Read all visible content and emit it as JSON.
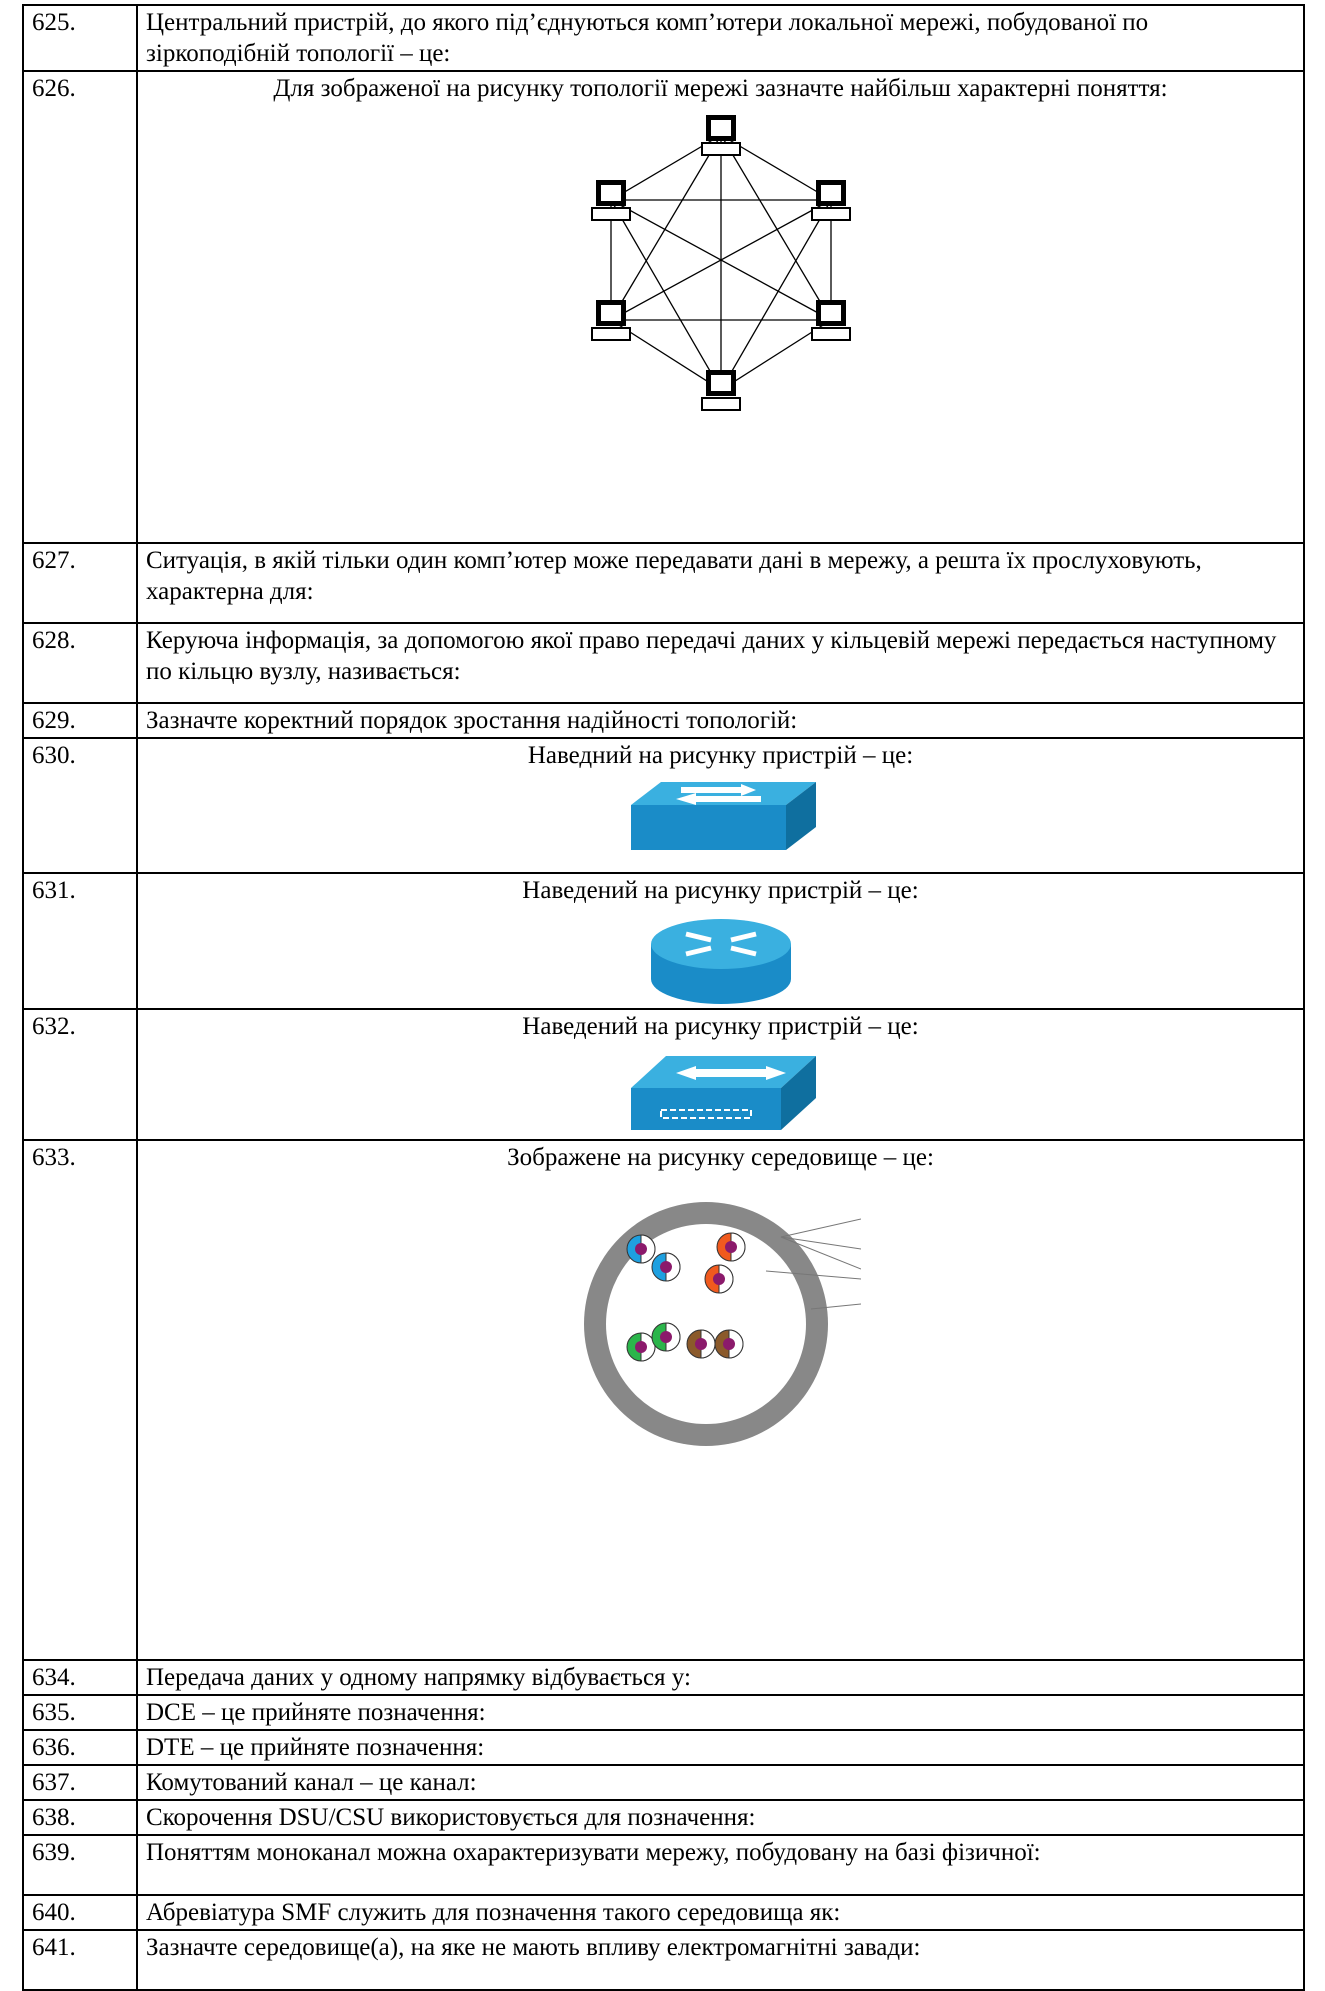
{
  "table": {
    "rows": [
      [
        "625.",
        "Центральний пристрій, до якого під’єднуються комп’ютери локальної мережі, побудованої по зіркоподібній топології – це:"
      ],
      [
        "626.",
        "Для зображеної на рисунку топології мережі зазначте найбільш характерні поняття:"
      ],
      [
        "627.",
        "Ситуація, в якій тільки один комп’ютер може передавати дані в мережу, а решта їх прослуховують, характерна для:"
      ],
      [
        "628.",
        "Керуюча інформація, за допомогою якої право передачі даних у кільцевій мережі передається наступному по кільцю вузлу, називається:"
      ],
      [
        "629.",
        "Зазначте коректний порядок зростання надійності топологій:"
      ],
      [
        "630.",
        "Наведний на рисунку пристрій – це:"
      ],
      [
        "631.",
        "Наведений на рисунку пристрій – це:"
      ],
      [
        "632.",
        "Наведений на рисунку пристрій – це:"
      ],
      [
        "633.",
        "Зображене на рисунку середовище – це:"
      ],
      [
        "634.",
        "Передача даних у одному напрямку відбувається у:"
      ],
      [
        "635.",
        "DCE – це прийняте позначення:"
      ],
      [
        "636.",
        "DTE – це прийняте позначення:"
      ],
      [
        "637.",
        "Комутований канал – це канал:"
      ],
      [
        "638.",
        "Скорочення DSU/CSU використовується для позначення:"
      ],
      [
        "639.",
        "Поняттям моноканал можна охарактеризувати мережу, побудовану на базі фізичної:"
      ],
      [
        "640.",
        "Абревіатура SMF служить для позначення такого середовища як:"
      ],
      [
        "641.",
        "Зазначте середовище(а), на яке не мають впливу електромагнітні завади:"
      ]
    ]
  }
}
